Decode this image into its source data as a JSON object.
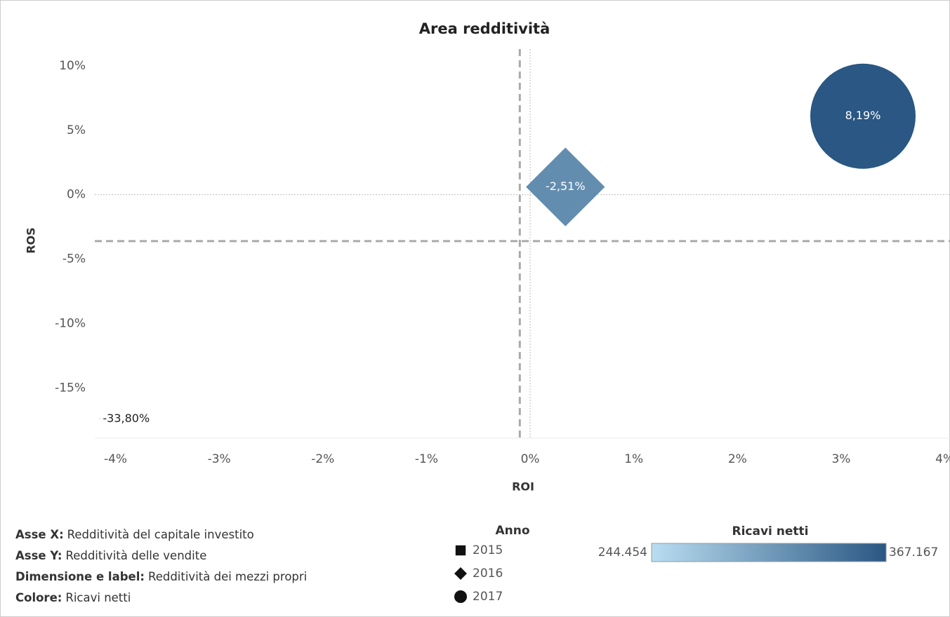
{
  "chart_data": {
    "type": "scatter",
    "title": "Area redditività",
    "x_label": "ROI",
    "y_label": "ROS",
    "xlim": [
      -4.2,
      4.05
    ],
    "ylim": [
      -18.9,
      11.3
    ],
    "xticks": [
      {
        "value": -4,
        "label": "-4%"
      },
      {
        "value": -3,
        "label": "-3%"
      },
      {
        "value": -2,
        "label": "-2%"
      },
      {
        "value": -1,
        "label": "-1%"
      },
      {
        "value": 0,
        "label": "0%"
      },
      {
        "value": 1,
        "label": "1%"
      },
      {
        "value": 2,
        "label": "2%"
      },
      {
        "value": 3,
        "label": "3%"
      },
      {
        "value": 4,
        "label": "4%"
      }
    ],
    "yticks": [
      {
        "value": 10,
        "label": "10%"
      },
      {
        "value": 5,
        "label": "5%"
      },
      {
        "value": 0,
        "label": "0%"
      },
      {
        "value": -5,
        "label": "-5%"
      },
      {
        "value": -10,
        "label": "-10%"
      },
      {
        "value": -15,
        "label": "-15%"
      }
    ],
    "reference_lines": {
      "x": -0.1,
      "y": -3.6
    },
    "points": {
      "x": [
        -4.15,
        0.34,
        3.21
      ],
      "y": [
        -17.4,
        0.6,
        6.09
      ],
      "size": [
        -33.8,
        -2.51,
        8.19
      ],
      "value_labels": [
        "-33,80%",
        "-2,51%",
        "8,19%"
      ],
      "color_values": [
        244454,
        318000,
        367167
      ]
    },
    "shape_legend": {
      "title": "Anno",
      "items": [
        {
          "name": "2015",
          "shape": "square"
        },
        {
          "name": "2016",
          "shape": "diamond"
        },
        {
          "name": "2017",
          "shape": "circle"
        }
      ]
    },
    "color_legend": {
      "title": "Ricavi netti",
      "range": [
        {
          "value": 244454,
          "label": "244.454"
        },
        {
          "value": 367167,
          "label": "367.167"
        }
      ],
      "colors": [
        "#b9ddf1",
        "#2a5783"
      ]
    },
    "notes": [
      {
        "label": "Asse X:",
        "text": "Redditività del capitale investito"
      },
      {
        "label": "Asse Y:",
        "text": "Redditività delle vendite"
      },
      {
        "label": "Dimensione e label:",
        "text": "Redditività dei mezzi propri"
      },
      {
        "label": "Colore:",
        "text": "Ricavi netti"
      }
    ]
  }
}
